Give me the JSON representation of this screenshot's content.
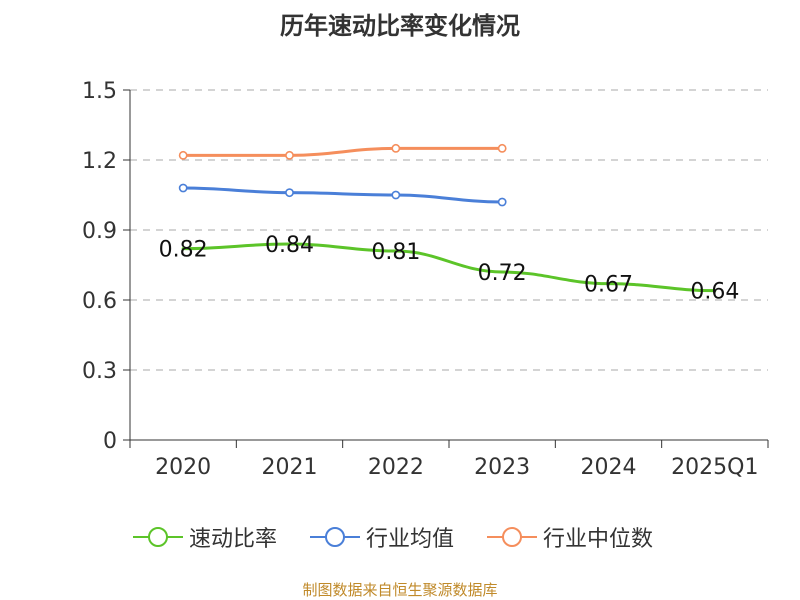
{
  "colors": {
    "series": [
      "#5cc429",
      "#4a7fd8",
      "#f58e5c"
    ],
    "axis": "#333333",
    "grid": "#bbbbbb",
    "text": "#333333",
    "source": "#c08a2a"
  },
  "source_note": "制图数据来自恒生聚源数据库",
  "chart_data": {
    "type": "line",
    "title": "历年速动比率变化情况",
    "xlabel": "",
    "ylabel": "",
    "categories": [
      "2020",
      "2021",
      "2022",
      "2023",
      "2024",
      "2025Q1"
    ],
    "ylim": [
      0,
      1.5
    ],
    "yticks": [
      "0",
      "0.3",
      "0.6",
      "0.9",
      "1.2",
      "1.5"
    ],
    "grid": "horizontal dashed",
    "legend_position": "bottom",
    "series": [
      {
        "name": "速动比率",
        "values": [
          0.82,
          0.84,
          0.81,
          0.72,
          0.67,
          0.64
        ],
        "labels": [
          "0.82",
          "0.84",
          "0.81",
          "0.72",
          "0.67",
          "0.64"
        ],
        "show_markers": false
      },
      {
        "name": "行业均值",
        "values": [
          1.08,
          1.06,
          1.05,
          1.02,
          null,
          null
        ],
        "show_markers": true
      },
      {
        "name": "行业中位数",
        "values": [
          1.22,
          1.22,
          1.25,
          1.25,
          null,
          null
        ],
        "show_markers": true
      }
    ]
  }
}
